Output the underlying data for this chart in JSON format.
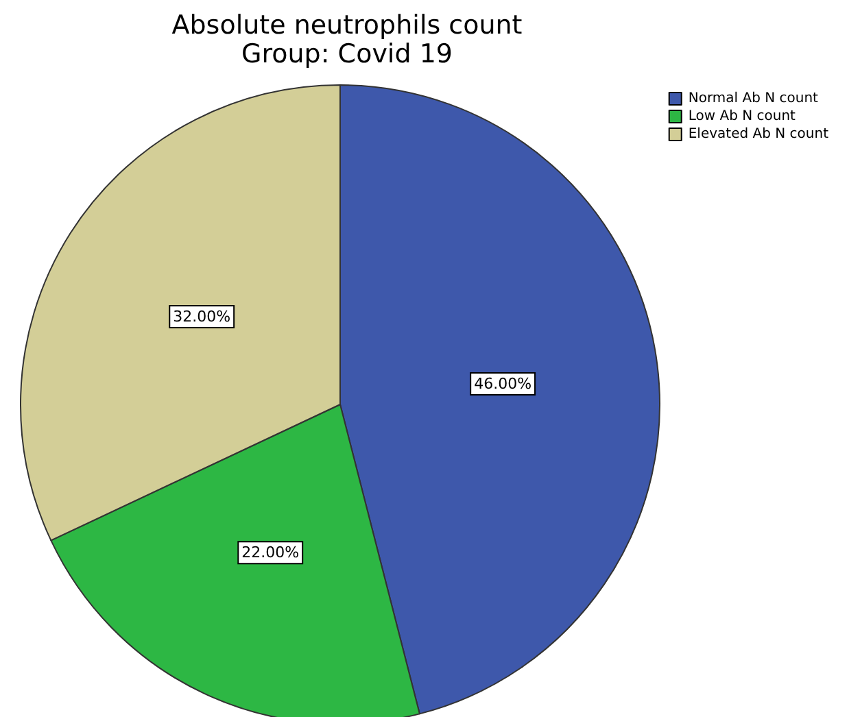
{
  "chart_data": {
    "type": "pie",
    "title": "Absolute neutrophils count",
    "subtitle": "Group: Covid 19",
    "categories": [
      "Normal Ab N count",
      "Low Ab N count",
      "Elevated Ab N count"
    ],
    "values": [
      46,
      22,
      32
    ],
    "colors": [
      "#3e58ab",
      "#2db744",
      "#d3ce97"
    ],
    "value_labels": [
      "46.00%",
      "22.00%",
      "32.00%"
    ],
    "legend": "top right"
  }
}
